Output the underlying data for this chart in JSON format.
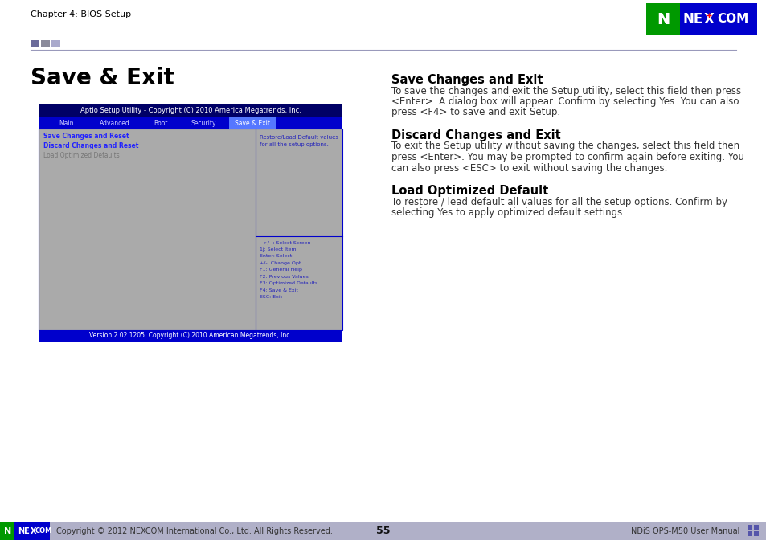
{
  "page_bg": "#ffffff",
  "header_text": "Chapter 4: BIOS Setup",
  "header_color": "#000000",
  "header_fontsize": 8,
  "accent_squares": [
    "#6b6b9a",
    "#8a8a9a",
    "#aaaacc"
  ],
  "divider_color": "#9999bb",
  "title": "Save & Exit",
  "title_fontsize": 20,
  "bios_title_bar_color": "#000066",
  "bios_title_text": "Aptio Setup Utility - Copyright (C) 2010 America Megatrends, Inc.",
  "bios_title_text_color": "#ffffff",
  "bios_nav_bar_color": "#0000cc",
  "bios_nav_items": [
    "Main",
    "Advanced",
    "Boot",
    "Security",
    "Save & Exit"
  ],
  "bios_nav_active": "Save & Exit",
  "bios_nav_text_color": "#ccccff",
  "bios_body_bg": "#aaaaaa",
  "bios_body_border": "#0000cc",
  "bios_left_items_blue": [
    "Save Changes and Reset",
    "Discard Changes and Reset"
  ],
  "bios_left_items_gray": [
    "Load Optimized Defaults"
  ],
  "bios_right_top_text": "Restore/Load Default values\nfor all the setup options.",
  "bios_right_bottom_lines": [
    "-->/--: Select Screen",
    "1j: Select Item",
    "Enter: Select",
    "+/-: Change Opt.",
    "F1: General Help",
    "F2: Previous Values",
    "F3: Optimized Defaults",
    "F4: Save & Exit",
    "ESC: Exit"
  ],
  "bios_footer_color": "#0000cc",
  "bios_footer_text": "Version 2.02.1205. Copyright (C) 2010 American Megatrends, Inc.",
  "bios_footer_text_color": "#ffffff",
  "right_heading1": "Save Changes and Exit",
  "right_text1_lines": [
    "To save the changes and exit the Setup utility, select this field then press",
    "<Enter>. A dialog box will appear. Confirm by selecting Yes. You can also",
    "press <F4> to save and exit Setup."
  ],
  "right_heading2": "Discard Changes and Exit",
  "right_text2_lines": [
    "To exit the Setup utility without saving the changes, select this field then",
    "press <Enter>. You may be prompted to confirm again before exiting. You",
    "can also press <ESC> to exit without saving the changes."
  ],
  "right_heading3": "Load Optimized Default",
  "right_text3_lines": [
    "To restore / lead default all values for all the setup options. Confirm by",
    "selecting Yes to apply optimized default settings."
  ],
  "footer_bg": "#b0b0c8",
  "footer_text_left": "Copyright © 2012 NEXCOM International Co., Ltd. All Rights Reserved.",
  "footer_page": "55",
  "footer_text_right": "NDiS OPS-M50 User Manual",
  "footer_text_color": "#333333",
  "footer_fontsize": 7
}
